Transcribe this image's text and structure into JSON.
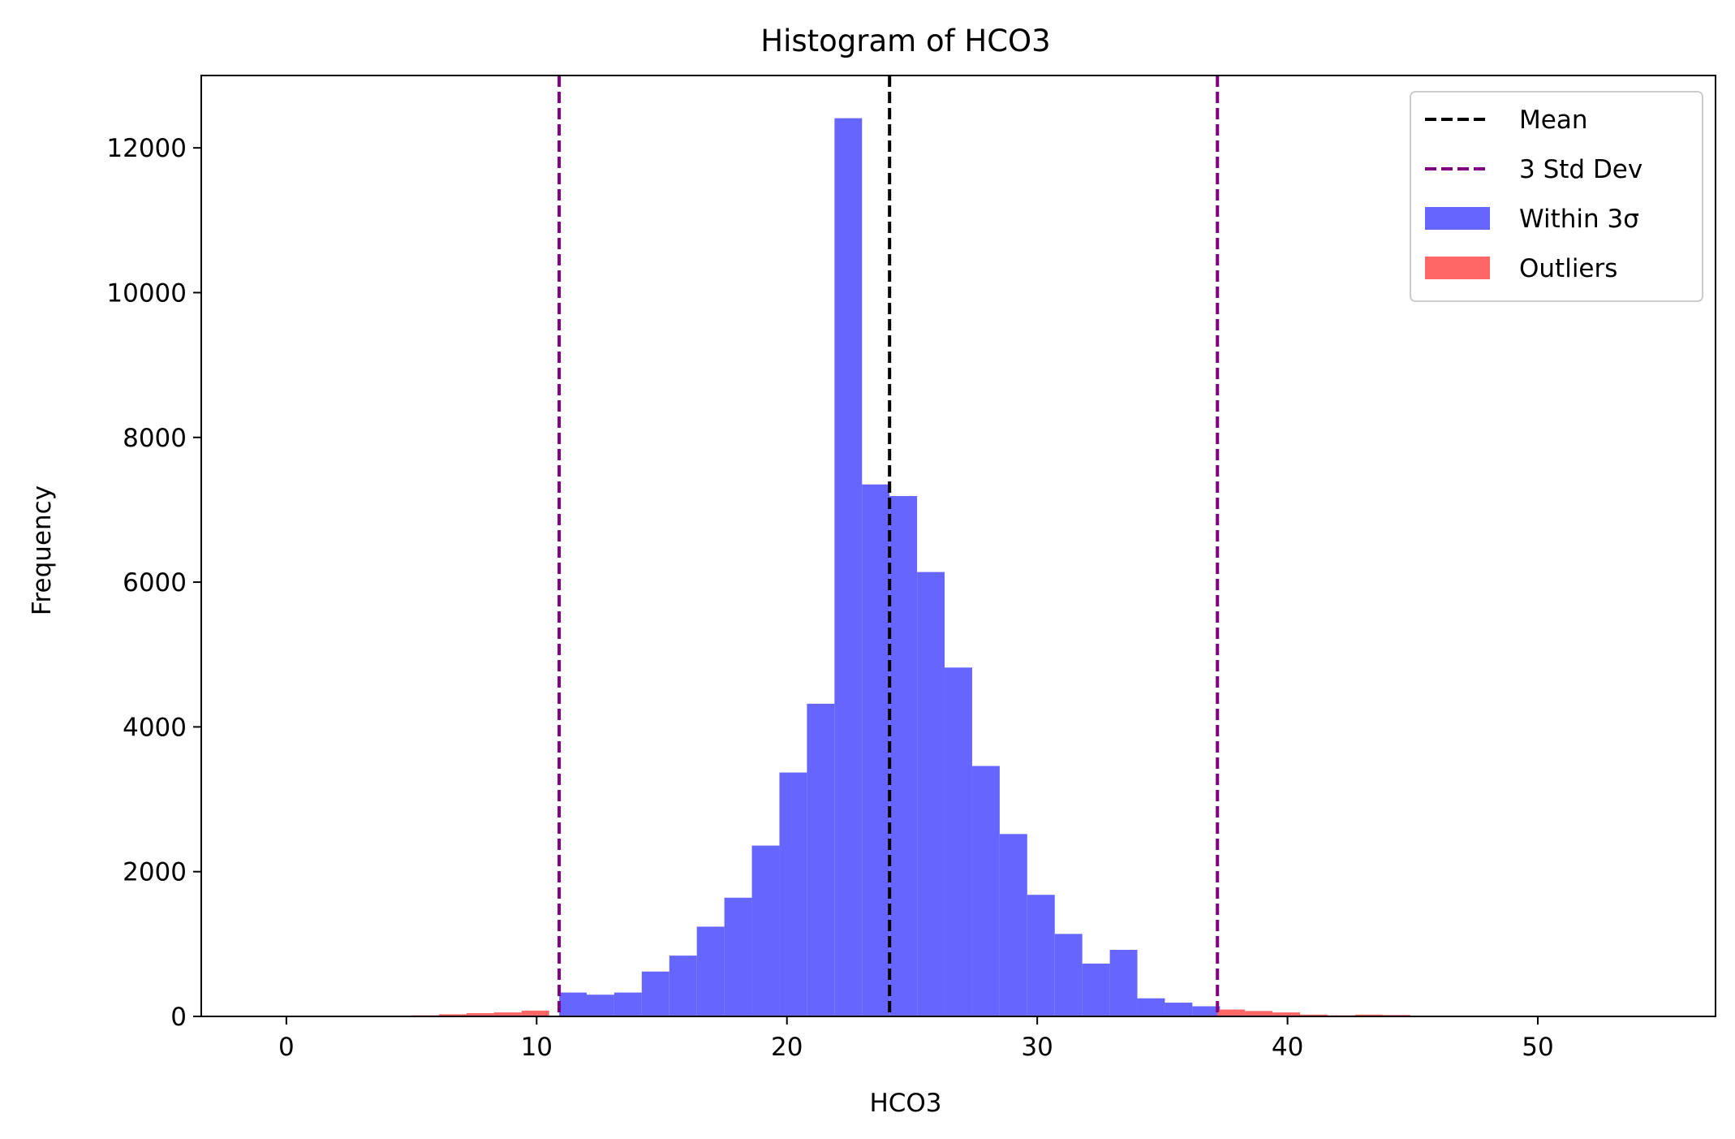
{
  "chart_data": {
    "type": "bar",
    "title": "Histogram of HCO3",
    "xlabel": "HCO3",
    "ylabel": "Frequency",
    "xlim": [
      -3.4,
      57.1
    ],
    "ylim": [
      0,
      13000
    ],
    "xticks": [
      0,
      10,
      20,
      30,
      40,
      50
    ],
    "yticks": [
      0,
      2000,
      4000,
      6000,
      8000,
      10000,
      12000
    ],
    "grid": false,
    "legend_position": "top-right",
    "bin_width": 1.1,
    "series": [
      {
        "name": "Within 3σ",
        "color": "#6666ff",
        "bins": [
          {
            "x0": 10.9,
            "x1": 12.0,
            "value": 330
          },
          {
            "x0": 12.0,
            "x1": 13.1,
            "value": 300
          },
          {
            "x0": 13.1,
            "x1": 14.2,
            "value": 330
          },
          {
            "x0": 14.2,
            "x1": 15.3,
            "value": 620
          },
          {
            "x0": 15.3,
            "x1": 16.4,
            "value": 840
          },
          {
            "x0": 16.4,
            "x1": 17.5,
            "value": 1240
          },
          {
            "x0": 17.5,
            "x1": 18.6,
            "value": 1640
          },
          {
            "x0": 18.6,
            "x1": 19.7,
            "value": 2360
          },
          {
            "x0": 19.7,
            "x1": 20.8,
            "value": 3370
          },
          {
            "x0": 20.8,
            "x1": 21.9,
            "value": 4320
          },
          {
            "x0": 21.9,
            "x1": 23.0,
            "value": 12410
          },
          {
            "x0": 23.0,
            "x1": 24.1,
            "value": 7350
          },
          {
            "x0": 24.1,
            "x1": 25.2,
            "value": 7190
          },
          {
            "x0": 25.2,
            "x1": 26.3,
            "value": 6140
          },
          {
            "x0": 26.3,
            "x1": 27.4,
            "value": 4820
          },
          {
            "x0": 27.4,
            "x1": 28.5,
            "value": 3460
          },
          {
            "x0": 28.5,
            "x1": 29.6,
            "value": 2520
          },
          {
            "x0": 29.6,
            "x1": 30.7,
            "value": 1680
          },
          {
            "x0": 30.7,
            "x1": 31.8,
            "value": 1140
          },
          {
            "x0": 31.8,
            "x1": 32.9,
            "value": 730
          },
          {
            "x0": 32.9,
            "x1": 34.0,
            "value": 920
          },
          {
            "x0": 34.0,
            "x1": 35.1,
            "value": 250
          },
          {
            "x0": 35.1,
            "x1": 36.2,
            "value": 190
          },
          {
            "x0": 36.2,
            "x1": 37.3,
            "value": 140
          }
        ]
      },
      {
        "name": "Outliers",
        "color": "#ff6666",
        "bins": [
          {
            "x0": 5.0,
            "x1": 6.1,
            "value": 15
          },
          {
            "x0": 6.1,
            "x1": 7.2,
            "value": 30
          },
          {
            "x0": 7.2,
            "x1": 8.3,
            "value": 45
          },
          {
            "x0": 8.3,
            "x1": 9.4,
            "value": 55
          },
          {
            "x0": 9.4,
            "x1": 10.5,
            "value": 80
          },
          {
            "x0": 37.2,
            "x1": 38.3,
            "value": 95
          },
          {
            "x0": 38.3,
            "x1": 39.4,
            "value": 75
          },
          {
            "x0": 39.4,
            "x1": 40.5,
            "value": 55
          },
          {
            "x0": 40.5,
            "x1": 41.6,
            "value": 25
          },
          {
            "x0": 41.6,
            "x1": 42.7,
            "value": 15
          },
          {
            "x0": 42.7,
            "x1": 43.8,
            "value": 25
          },
          {
            "x0": 43.8,
            "x1": 44.9,
            "value": 20
          }
        ]
      }
    ],
    "reference_lines": [
      {
        "name": "Mean",
        "x": 24.1,
        "color": "#000000",
        "style": "dashed"
      },
      {
        "name": "3 Std Dev",
        "x": 10.9,
        "color": "#800080",
        "style": "dashed"
      },
      {
        "name": "3 Std Dev",
        "x": 37.2,
        "color": "#800080",
        "style": "dashed"
      }
    ],
    "legend": [
      {
        "label": "Mean",
        "kind": "line",
        "color": "#000000"
      },
      {
        "label": "3 Std Dev",
        "kind": "line",
        "color": "#800080"
      },
      {
        "label": "Within 3σ",
        "kind": "patch",
        "color": "#6666ff"
      },
      {
        "label": "Outliers",
        "kind": "patch",
        "color": "#ff6666"
      }
    ]
  }
}
